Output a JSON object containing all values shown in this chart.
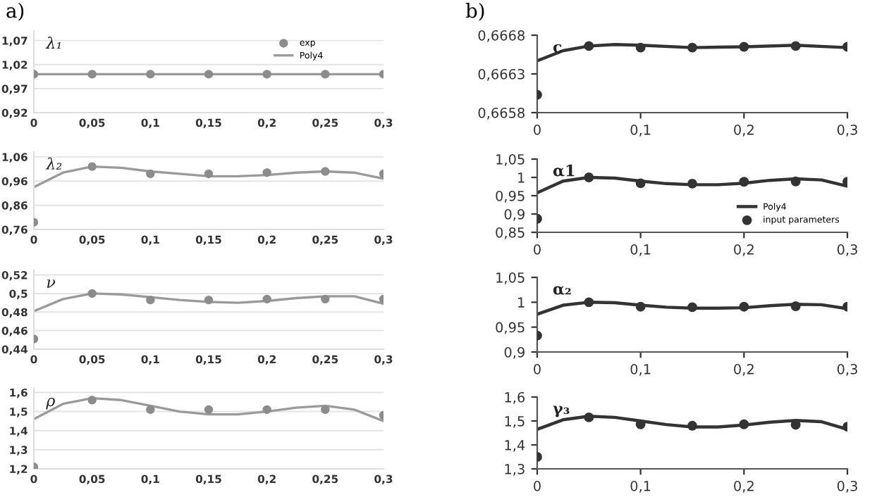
{
  "chart_data": [
    {
      "type": "line",
      "title": "λ₁",
      "annotations": [
        "a)"
      ],
      "xlim": [
        0,
        0.3
      ],
      "xticks": [
        0,
        {
          "value": 0.05,
          "label": "0,05"
        },
        {
          "value": 0.1,
          "label": "0,1"
        },
        {
          "value": 0.15,
          "label": "0,15"
        },
        {
          "value": 0.2,
          "label": "0,2"
        },
        {
          "value": 0.25,
          "label": "0,25"
        },
        {
          "value": 0.3,
          "label": "0,3"
        }
      ],
      "ylim": [
        0.92,
        1.09
      ],
      "yticks": [
        {
          "value": 0.92,
          "label": "0,92"
        },
        {
          "value": 0.97,
          "label": "0,97"
        },
        {
          "value": 1.02,
          "label": "1,02"
        },
        {
          "value": 1.07,
          "label": "1,07"
        }
      ],
      "grid": "y",
      "legend": "top right",
      "series": [
        {
          "name": "exp",
          "type": "scatter",
          "marker": "circle",
          "color": "#8c8c8c",
          "x": [
            0,
            0.05,
            0.1,
            0.15,
            0.2,
            0.25,
            0.3
          ],
          "values": [
            1.0,
            1.0,
            1.0,
            1.0,
            1.0,
            1.0,
            1.0
          ]
        },
        {
          "name": "Poly4",
          "type": "line",
          "marker": "none",
          "color": "#9a9a9a",
          "x": [
            0,
            0.1,
            0.2,
            0.3
          ],
          "values": [
            1.0,
            1.0,
            1.0,
            1.0
          ]
        }
      ]
    },
    {
      "type": "line",
      "title": "λ₂",
      "xlim": [
        0,
        0.3
      ],
      "xticks": [
        0,
        {
          "value": 0.05,
          "label": "0,05"
        },
        {
          "value": 0.1,
          "label": "0,1"
        },
        {
          "value": 0.15,
          "label": "0,15"
        },
        {
          "value": 0.2,
          "label": "0,2"
        },
        {
          "value": 0.25,
          "label": "0,25"
        },
        {
          "value": 0.3,
          "label": "0,3"
        }
      ],
      "ylim": [
        0.76,
        1.08
      ],
      "yticks": [
        {
          "value": 0.76,
          "label": "0,76"
        },
        {
          "value": 0.86,
          "label": "0,86"
        },
        {
          "value": 0.96,
          "label": "0,96"
        },
        {
          "value": 1.06,
          "label": "1,06"
        }
      ],
      "grid": "y",
      "series": [
        {
          "type": "scatter",
          "marker": "circle",
          "color": "#8c8c8c",
          "x": [
            0,
            0.05,
            0.1,
            0.15,
            0.2,
            0.25,
            0.3
          ],
          "values": [
            0.79,
            1.02,
            0.99,
            0.99,
            0.995,
            1.0,
            0.99
          ]
        },
        {
          "type": "line",
          "marker": "none",
          "color": "#9a9a9a",
          "x": [
            0,
            0.025,
            0.05,
            0.075,
            0.1,
            0.125,
            0.15,
            0.175,
            0.2,
            0.225,
            0.25,
            0.275,
            0.3
          ],
          "values": [
            0.935,
            0.995,
            1.02,
            1.015,
            1.0,
            0.99,
            0.98,
            0.98,
            0.985,
            0.995,
            1.0,
            0.995,
            0.97
          ]
        }
      ]
    },
    {
      "type": "line",
      "title": "ν",
      "xlim": [
        0,
        0.3
      ],
      "xticks": [
        0,
        {
          "value": 0.05,
          "label": "0,05"
        },
        {
          "value": 0.1,
          "label": "0,1"
        },
        {
          "value": 0.15,
          "label": "0,15"
        },
        {
          "value": 0.2,
          "label": "0,2"
        },
        {
          "value": 0.25,
          "label": "0,25"
        },
        {
          "value": 0.3,
          "label": "0,3"
        }
      ],
      "ylim": [
        0.44,
        0.525
      ],
      "yticks": [
        {
          "value": 0.44,
          "label": "0,44"
        },
        {
          "value": 0.46,
          "label": "0,46"
        },
        {
          "value": 0.48,
          "label": "0,48"
        },
        {
          "value": 0.5,
          "label": "0,5"
        },
        {
          "value": 0.52,
          "label": "0,52"
        }
      ],
      "grid": "y",
      "series": [
        {
          "type": "scatter",
          "marker": "circle",
          "color": "#8c8c8c",
          "x": [
            0,
            0.05,
            0.1,
            0.15,
            0.2,
            0.25,
            0.3
          ],
          "values": [
            0.451,
            0.5,
            0.493,
            0.493,
            0.494,
            0.494,
            0.494
          ]
        },
        {
          "type": "line",
          "marker": "none",
          "color": "#9a9a9a",
          "x": [
            0,
            0.025,
            0.05,
            0.075,
            0.1,
            0.125,
            0.15,
            0.175,
            0.2,
            0.225,
            0.25,
            0.275,
            0.3
          ],
          "values": [
            0.481,
            0.494,
            0.5,
            0.499,
            0.496,
            0.493,
            0.491,
            0.49,
            0.492,
            0.495,
            0.497,
            0.497,
            0.489
          ]
        }
      ]
    },
    {
      "type": "line",
      "title": "ρ",
      "xlim": [
        0,
        0.3
      ],
      "xticks": [
        0,
        {
          "value": 0.05,
          "label": "0,05"
        },
        {
          "value": 0.1,
          "label": "0,1"
        },
        {
          "value": 0.15,
          "label": "0,15"
        },
        {
          "value": 0.2,
          "label": "0,2"
        },
        {
          "value": 0.25,
          "label": "0,25"
        },
        {
          "value": 0.3,
          "label": "0,3"
        }
      ],
      "ylim": [
        1.2,
        1.62
      ],
      "yticks": [
        {
          "value": 1.2,
          "label": "1,2"
        },
        {
          "value": 1.3,
          "label": "1,3"
        },
        {
          "value": 1.4,
          "label": "1,4"
        },
        {
          "value": 1.5,
          "label": "1,5"
        },
        {
          "value": 1.6,
          "label": "1,6"
        }
      ],
      "grid": "y",
      "series": [
        {
          "type": "scatter",
          "marker": "circle",
          "color": "#8c8c8c",
          "x": [
            0,
            0.05,
            0.1,
            0.15,
            0.2,
            0.25,
            0.3
          ],
          "values": [
            1.21,
            1.56,
            1.51,
            1.51,
            1.51,
            1.51,
            1.48
          ]
        },
        {
          "type": "line",
          "marker": "none",
          "color": "#9a9a9a",
          "x": [
            0,
            0.025,
            0.05,
            0.075,
            0.1,
            0.125,
            0.15,
            0.175,
            0.2,
            0.225,
            0.25,
            0.275,
            0.3
          ],
          "values": [
            1.46,
            1.54,
            1.57,
            1.56,
            1.53,
            1.5,
            1.485,
            1.485,
            1.5,
            1.52,
            1.53,
            1.51,
            1.45
          ]
        }
      ]
    },
    {
      "type": "line",
      "title": "c",
      "annotations": [
        "b)"
      ],
      "xlim": [
        0,
        0.3
      ],
      "xticks": [
        0,
        {
          "value": 0.1,
          "label": "0,1"
        },
        {
          "value": 0.2,
          "label": "0,2"
        },
        {
          "value": 0.3,
          "label": "0,3"
        }
      ],
      "ylim": [
        0.6658,
        0.6668
      ],
      "yticks": [
        {
          "value": 0.6658,
          "label": "0,6658"
        },
        {
          "value": 0.6663,
          "label": "0,6663"
        },
        {
          "value": 0.6668,
          "label": "0,6668"
        }
      ],
      "series": [
        {
          "type": "scatter",
          "marker": "circle",
          "color": "#333333",
          "x": [
            0,
            0.05,
            0.1,
            0.15,
            0.2,
            0.25,
            0.3
          ],
          "values": [
            0.66603,
            0.66666,
            0.66664,
            0.66664,
            0.66665,
            0.66666,
            0.66665
          ]
        },
        {
          "type": "line",
          "marker": "none",
          "color": "#333333",
          "x": [
            0,
            0.025,
            0.05,
            0.075,
            0.1,
            0.15,
            0.2,
            0.25,
            0.3
          ],
          "values": [
            0.66647,
            0.6666,
            0.66666,
            0.66668,
            0.66667,
            0.66664,
            0.66665,
            0.66667,
            0.66664
          ]
        }
      ]
    },
    {
      "type": "line",
      "title": "α1",
      "xlim": [
        0,
        0.3
      ],
      "xticks": [
        0,
        {
          "value": 0.1,
          "label": "0,1"
        },
        {
          "value": 0.2,
          "label": "0,2"
        },
        {
          "value": 0.3,
          "label": "0,3"
        }
      ],
      "ylim": [
        0.85,
        1.05
      ],
      "yticks": [
        {
          "value": 0.85,
          "label": "0,85"
        },
        {
          "value": 0.9,
          "label": "0,9"
        },
        {
          "value": 0.95,
          "label": "0,95"
        },
        1,
        {
          "value": 1.05,
          "label": "1,05"
        }
      ],
      "legend": "bottom right",
      "series": [
        {
          "name": "Poly4",
          "type": "line",
          "marker": "none",
          "color": "#333333",
          "x": [
            0,
            0.025,
            0.05,
            0.075,
            0.1,
            0.125,
            0.15,
            0.175,
            0.2,
            0.225,
            0.25,
            0.275,
            0.3
          ],
          "values": [
            0.958,
            0.99,
            1.0,
            0.998,
            0.99,
            0.983,
            0.98,
            0.98,
            0.984,
            0.992,
            0.996,
            0.993,
            0.976
          ]
        },
        {
          "name": "input parameters",
          "type": "scatter",
          "marker": "circle",
          "color": "#333333",
          "x": [
            0,
            0.05,
            0.1,
            0.15,
            0.2,
            0.25,
            0.3
          ],
          "values": [
            0.887,
            1.0,
            0.984,
            0.983,
            0.988,
            0.989,
            0.988
          ]
        }
      ]
    },
    {
      "type": "line",
      "title": "α₂",
      "xlim": [
        0,
        0.3
      ],
      "xticks": [
        0,
        {
          "value": 0.1,
          "label": "0,1"
        },
        {
          "value": 0.2,
          "label": "0,2"
        },
        {
          "value": 0.3,
          "label": "0,3"
        }
      ],
      "ylim": [
        0.9,
        1.05
      ],
      "yticks": [
        {
          "value": 0.9,
          "label": "0,9"
        },
        {
          "value": 0.95,
          "label": "0,95"
        },
        1,
        {
          "value": 1.05,
          "label": "1,05"
        }
      ],
      "series": [
        {
          "type": "scatter",
          "marker": "circle",
          "color": "#333333",
          "x": [
            0,
            0.05,
            0.1,
            0.15,
            0.2,
            0.25,
            0.3
          ],
          "values": [
            0.933,
            1.0,
            0.991,
            0.99,
            0.991,
            0.992,
            0.991
          ]
        },
        {
          "type": "line",
          "marker": "none",
          "color": "#333333",
          "x": [
            0,
            0.025,
            0.05,
            0.075,
            0.1,
            0.125,
            0.15,
            0.175,
            0.2,
            0.225,
            0.25,
            0.275,
            0.3
          ],
          "values": [
            0.976,
            0.994,
            1.0,
            0.999,
            0.994,
            0.99,
            0.988,
            0.988,
            0.989,
            0.993,
            0.996,
            0.995,
            0.987
          ]
        }
      ]
    },
    {
      "type": "line",
      "title": "γ₃",
      "xlim": [
        0,
        0.3
      ],
      "xticks": [
        0,
        {
          "value": 0.1,
          "label": "0,1"
        },
        {
          "value": 0.2,
          "label": "0,2"
        },
        {
          "value": 0.3,
          "label": "0,3"
        }
      ],
      "ylim": [
        1.3,
        1.6
      ],
      "yticks": [
        {
          "value": 1.3,
          "label": "1,3"
        },
        {
          "value": 1.4,
          "label": "1,4"
        },
        {
          "value": 1.5,
          "label": "1,5"
        },
        {
          "value": 1.6,
          "label": "1,6"
        }
      ],
      "series": [
        {
          "type": "scatter",
          "marker": "circle",
          "color": "#333333",
          "x": [
            0,
            0.05,
            0.1,
            0.15,
            0.2,
            0.25,
            0.3
          ],
          "values": [
            1.35,
            1.515,
            1.486,
            1.48,
            1.486,
            1.484,
            1.476
          ]
        },
        {
          "type": "line",
          "marker": "none",
          "color": "#333333",
          "x": [
            0,
            0.025,
            0.05,
            0.075,
            0.1,
            0.125,
            0.15,
            0.175,
            0.2,
            0.225,
            0.25,
            0.275,
            0.3
          ],
          "values": [
            1.465,
            1.505,
            1.52,
            1.515,
            1.5,
            1.485,
            1.475,
            1.475,
            1.483,
            1.495,
            1.502,
            1.497,
            1.465
          ]
        }
      ]
    }
  ]
}
